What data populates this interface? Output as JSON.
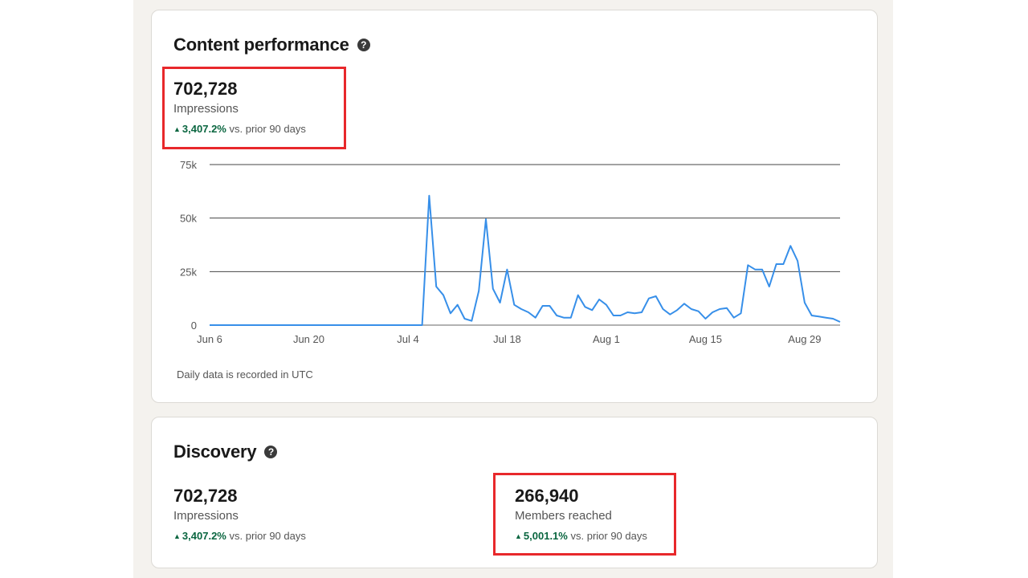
{
  "content_performance": {
    "title": "Content performance",
    "help_icon": "question-circle-icon",
    "metric": {
      "value": "702,728",
      "label": "Impressions",
      "change": "3,407.2%",
      "change_suffix": "vs. prior 90 days"
    },
    "footnote": "Daily data is recorded in UTC"
  },
  "discovery": {
    "title": "Discovery",
    "help_icon": "question-circle-icon",
    "impressions": {
      "value": "702,728",
      "label": "Impressions",
      "change": "3,407.2%",
      "change_suffix": "vs. prior 90 days"
    },
    "members": {
      "value": "266,940",
      "label": "Members reached",
      "change": "5,001.1%",
      "change_suffix": "vs. prior 90 days"
    }
  },
  "colors": {
    "line": "#378fe9",
    "positive": "#0a6640",
    "highlight": "#e8282b"
  },
  "chart_data": {
    "type": "line",
    "x_start": "Jun 6",
    "x_tick_labels": [
      "Jun 6",
      "Jun 20",
      "Jul 4",
      "Jul 18",
      "Aug 1",
      "Aug 15",
      "Aug 29"
    ],
    "y_tick_labels": [
      "75k",
      "50k",
      "25k",
      "0"
    ],
    "y_ticks": [
      75000,
      50000,
      25000,
      0
    ],
    "ylim": [
      0,
      75000
    ],
    "grid": true,
    "series": [
      {
        "values": [
          0,
          0,
          0,
          0,
          0,
          0,
          0,
          0,
          0,
          0,
          0,
          0,
          0,
          0,
          0,
          0,
          0,
          0,
          0,
          0,
          0,
          0,
          0,
          0,
          0,
          0,
          0,
          0,
          0,
          0,
          0,
          60500,
          18000,
          14000,
          5500,
          9500,
          3000,
          2000,
          16000,
          49500,
          17000,
          10500,
          26000,
          9500,
          7500,
          6000,
          3500,
          9000,
          9000,
          4500,
          3500,
          3500,
          14000,
          8500,
          7000,
          12000,
          9500,
          4500,
          4500,
          6000,
          5500,
          6000,
          12500,
          13500,
          7500,
          5000,
          7000,
          10000,
          7500,
          6500,
          3000,
          6000,
          7500,
          8000,
          3500,
          5500,
          28000,
          26000,
          26000,
          18000,
          28500,
          28500,
          37000,
          30000,
          10500,
          4500,
          4000,
          3500,
          3000,
          1500
        ]
      }
    ],
    "xlabel": "",
    "ylabel": ""
  }
}
